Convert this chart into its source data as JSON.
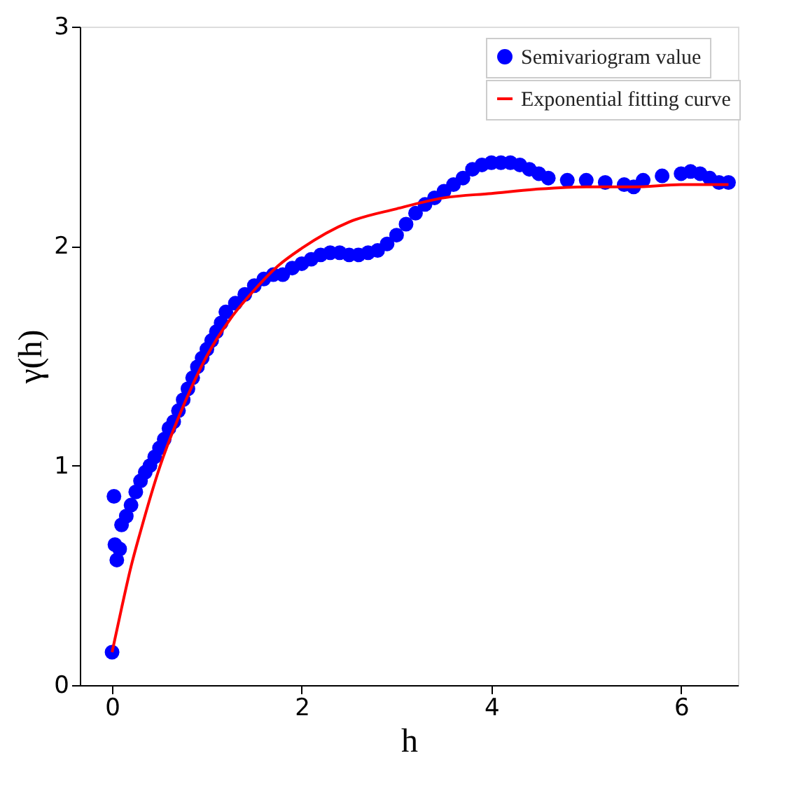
{
  "chart_data": {
    "type": "scatter",
    "xlabel": "h",
    "ylabel": "γ(h)",
    "xlim": [
      -0.34,
      6.6
    ],
    "xticks": [
      0,
      2,
      4,
      6
    ],
    "ylim": [
      0,
      3
    ],
    "yticks": [
      0,
      1,
      2,
      3
    ],
    "grid": false,
    "legend": "top right",
    "series": [
      {
        "name": "Semivariogram value",
        "color": "#0000ff",
        "marker": "circle",
        "x": [
          0,
          0.02,
          0.03,
          0.05,
          0.08,
          0.1,
          0.15,
          0.2,
          0.25,
          0.3,
          0.35,
          0.4,
          0.45,
          0.5,
          0.55,
          0.6,
          0.65,
          0.7,
          0.75,
          0.8,
          0.85,
          0.9,
          0.95,
          1.0,
          1.05,
          1.1,
          1.15,
          1.2,
          1.3,
          1.4,
          1.5,
          1.6,
          1.7,
          1.8,
          1.9,
          2.0,
          2.1,
          2.2,
          2.3,
          2.4,
          2.5,
          2.6,
          2.7,
          2.8,
          2.9,
          3.0,
          3.1,
          3.2,
          3.3,
          3.4,
          3.5,
          3.6,
          3.7,
          3.8,
          3.9,
          4.0,
          4.1,
          4.2,
          4.3,
          4.4,
          4.5,
          4.6,
          4.8,
          5.0,
          5.2,
          5.4,
          5.5,
          5.6,
          5.8,
          6.0,
          6.1,
          6.2,
          6.3,
          6.4,
          6.5
        ],
        "values": [
          0.15,
          0.86,
          0.64,
          0.57,
          0.62,
          0.73,
          0.77,
          0.82,
          0.88,
          0.93,
          0.97,
          1.0,
          1.04,
          1.08,
          1.12,
          1.17,
          1.2,
          1.25,
          1.3,
          1.35,
          1.4,
          1.45,
          1.49,
          1.53,
          1.57,
          1.61,
          1.65,
          1.7,
          1.74,
          1.78,
          1.82,
          1.85,
          1.87,
          1.87,
          1.9,
          1.92,
          1.94,
          1.96,
          1.97,
          1.97,
          1.96,
          1.96,
          1.97,
          1.98,
          2.01,
          2.05,
          2.1,
          2.15,
          2.19,
          2.22,
          2.25,
          2.28,
          2.31,
          2.35,
          2.37,
          2.38,
          2.38,
          2.38,
          2.37,
          2.35,
          2.33,
          2.31,
          2.3,
          2.3,
          2.29,
          2.28,
          2.27,
          2.3,
          2.32,
          2.33,
          2.34,
          2.33,
          2.31,
          2.29,
          2.29
        ]
      },
      {
        "name": "Exponential fitting curve",
        "color": "#ff0000",
        "type": "line",
        "x": [
          0,
          0.1,
          0.2,
          0.3,
          0.5,
          0.75,
          1,
          1.25,
          1.5,
          1.75,
          2,
          2.5,
          3,
          3.5,
          4,
          4.5,
          5,
          5.5,
          6,
          6.5
        ],
        "values": [
          0.15,
          0.35,
          0.54,
          0.7,
          0.99,
          1.27,
          1.5,
          1.67,
          1.8,
          1.91,
          1.99,
          2.11,
          2.17,
          2.22,
          2.24,
          2.26,
          2.27,
          2.27,
          2.28,
          2.28
        ]
      }
    ]
  }
}
